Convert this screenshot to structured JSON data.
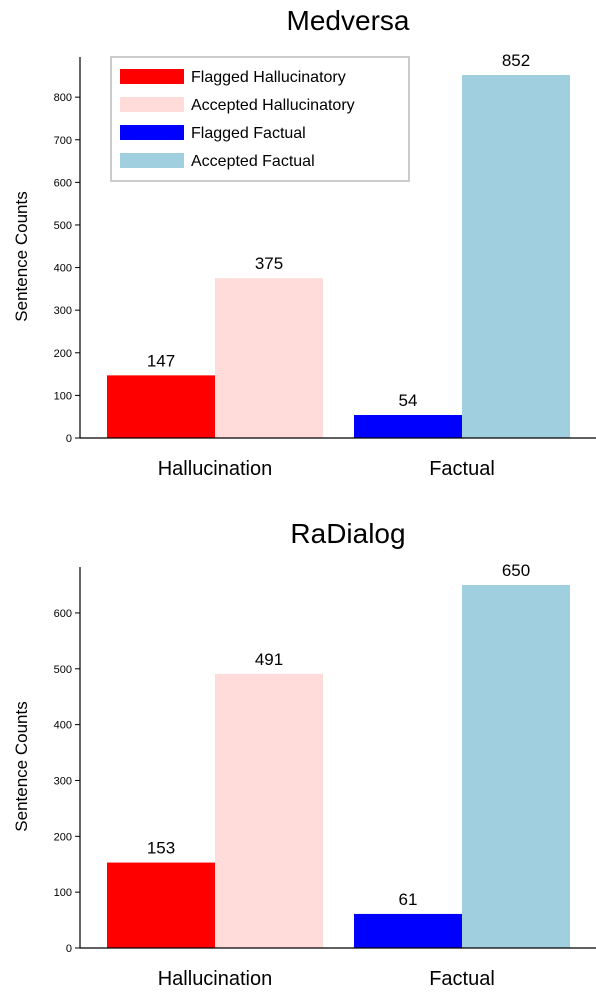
{
  "chart_data": [
    {
      "type": "bar",
      "title": "Medversa",
      "xlabel": "",
      "ylabel": "Sentence Counts",
      "categories": [
        "Hallucination",
        "Factual"
      ],
      "series": [
        {
          "name": "Flagged Hallucinatory",
          "color": "#ff0000",
          "values": [
            147,
            null
          ]
        },
        {
          "name": "Accepted Hallucinatory",
          "color": "#ffdcda",
          "values": [
            375,
            null
          ]
        },
        {
          "name": "Flagged Factual",
          "color": "#0000ff",
          "values": [
            null,
            54
          ]
        },
        {
          "name": "Accepted Factual",
          "color": "#a0cfe0",
          "values": [
            null,
            852
          ]
        }
      ],
      "ylim": [
        0,
        852
      ],
      "yticks": [
        0,
        100,
        200,
        300,
        400,
        500,
        600,
        700,
        800
      ],
      "grid": false,
      "legend": "top-left"
    },
    {
      "type": "bar",
      "title": "RaDialog",
      "xlabel": "",
      "ylabel": "Sentence Counts",
      "categories": [
        "Hallucination",
        "Factual"
      ],
      "series": [
        {
          "name": "Flagged Hallucinatory",
          "color": "#ff0000",
          "values": [
            153,
            null
          ]
        },
        {
          "name": "Accepted Hallucinatory",
          "color": "#ffdcda",
          "values": [
            491,
            null
          ]
        },
        {
          "name": "Flagged Factual",
          "color": "#0000ff",
          "values": [
            null,
            61
          ]
        },
        {
          "name": "Accepted Factual",
          "color": "#a0cfe0",
          "values": [
            null,
            650
          ]
        }
      ],
      "ylim": [
        0,
        650
      ],
      "yticks": [
        0,
        100,
        200,
        300,
        400,
        500,
        600
      ],
      "grid": false,
      "legend": "none"
    }
  ]
}
